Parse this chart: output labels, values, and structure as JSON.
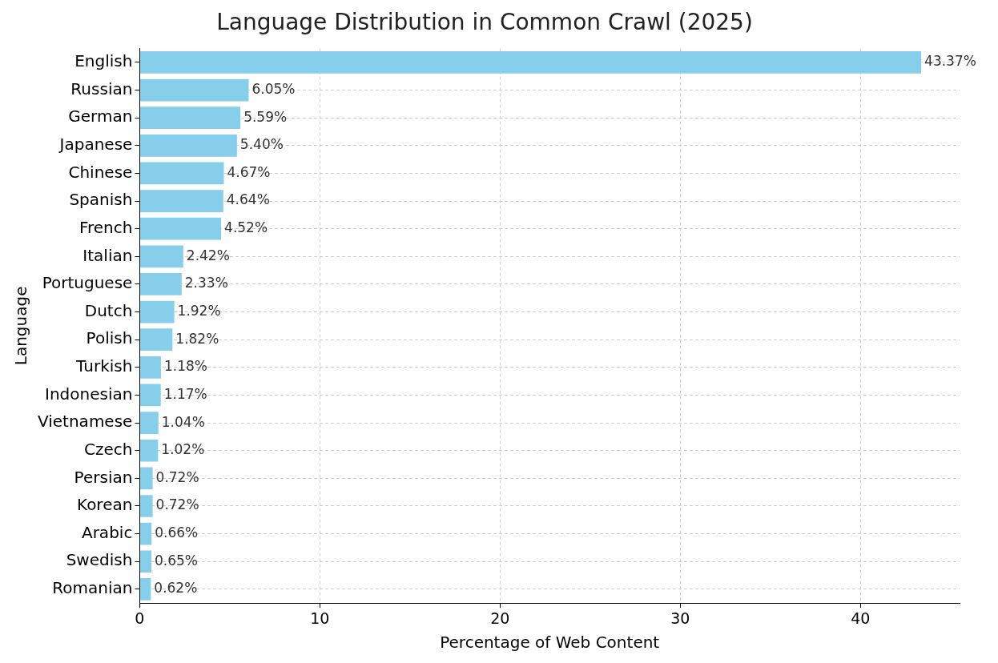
{
  "chart_data": {
    "type": "bar",
    "orientation": "horizontal",
    "title": "Language Distribution in Common Crawl (2025)",
    "xlabel": "Percentage of Web Content",
    "ylabel": "Language",
    "categories": [
      "English",
      "Russian",
      "German",
      "Japanese",
      "Chinese",
      "Spanish",
      "French",
      "Italian",
      "Portuguese",
      "Dutch",
      "Polish",
      "Turkish",
      "Indonesian",
      "Vietnamese",
      "Czech",
      "Persian",
      "Korean",
      "Arabic",
      "Swedish",
      "Romanian"
    ],
    "values": [
      43.37,
      6.05,
      5.59,
      5.4,
      4.67,
      4.64,
      4.52,
      2.42,
      2.33,
      1.92,
      1.82,
      1.18,
      1.17,
      1.04,
      1.02,
      0.72,
      0.72,
      0.66,
      0.65,
      0.62
    ],
    "value_labels": [
      "43.37%",
      "6.05%",
      "5.59%",
      "5.40%",
      "4.67%",
      "4.64%",
      "4.52%",
      "2.42%",
      "2.33%",
      "1.92%",
      "1.82%",
      "1.18%",
      "1.17%",
      "1.04%",
      "1.02%",
      "0.72%",
      "0.72%",
      "0.66%",
      "0.65%",
      "0.62%"
    ],
    "color": "#87ceeb",
    "xlim": [
      0,
      45.5
    ],
    "xticks": [
      0,
      10,
      20,
      30,
      40
    ],
    "grid": true,
    "line_style": "dashed"
  }
}
